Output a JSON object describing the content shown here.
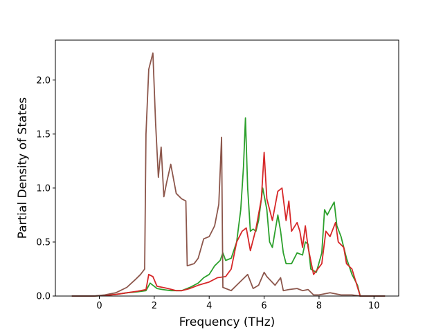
{
  "chart_data": {
    "type": "line",
    "title": "",
    "xlabel": "Frequency (THz)",
    "ylabel": "Partial Density of States",
    "xlim": [
      -1.6,
      10.9
    ],
    "ylim": [
      0,
      2.37
    ],
    "xticks": [
      0,
      2,
      4,
      6,
      8,
      10
    ],
    "yticks": [
      0.0,
      0.5,
      1.0,
      1.5,
      2.0
    ],
    "xtick_labels": [
      "0",
      "2",
      "4",
      "6",
      "8",
      "10"
    ],
    "ytick_labels": [
      "0.0",
      "0.5",
      "1.0",
      "1.5",
      "2.0"
    ],
    "grid": false,
    "legend": "none",
    "series": [
      {
        "color": "#2ca02c",
        "points": [
          [
            -1.0,
            0
          ],
          [
            -0.2,
            0
          ],
          [
            0.2,
            0.005
          ],
          [
            0.6,
            0.015
          ],
          [
            1.0,
            0.03
          ],
          [
            1.4,
            0.04
          ],
          [
            1.7,
            0.05
          ],
          [
            1.85,
            0.12
          ],
          [
            1.95,
            0.1
          ],
          [
            2.1,
            0.07
          ],
          [
            2.3,
            0.06
          ],
          [
            2.6,
            0.05
          ],
          [
            3.0,
            0.05
          ],
          [
            3.3,
            0.08
          ],
          [
            3.6,
            0.12
          ],
          [
            3.8,
            0.17
          ],
          [
            4.0,
            0.2
          ],
          [
            4.2,
            0.28
          ],
          [
            4.4,
            0.33
          ],
          [
            4.5,
            0.4
          ],
          [
            4.6,
            0.33
          ],
          [
            4.8,
            0.35
          ],
          [
            5.0,
            0.5
          ],
          [
            5.15,
            0.8
          ],
          [
            5.25,
            1.2
          ],
          [
            5.32,
            1.65
          ],
          [
            5.4,
            1.0
          ],
          [
            5.5,
            0.6
          ],
          [
            5.6,
            0.62
          ],
          [
            5.7,
            0.6
          ],
          [
            5.8,
            0.7
          ],
          [
            5.95,
            1.0
          ],
          [
            6.1,
            0.8
          ],
          [
            6.2,
            0.5
          ],
          [
            6.3,
            0.45
          ],
          [
            6.4,
            0.6
          ],
          [
            6.5,
            0.75
          ],
          [
            6.6,
            0.6
          ],
          [
            6.7,
            0.4
          ],
          [
            6.8,
            0.3
          ],
          [
            7.0,
            0.3
          ],
          [
            7.2,
            0.4
          ],
          [
            7.4,
            0.38
          ],
          [
            7.5,
            0.5
          ],
          [
            7.6,
            0.48
          ],
          [
            7.7,
            0.25
          ],
          [
            7.9,
            0.22
          ],
          [
            8.1,
            0.4
          ],
          [
            8.2,
            0.8
          ],
          [
            8.3,
            0.75
          ],
          [
            8.4,
            0.8
          ],
          [
            8.55,
            0.87
          ],
          [
            8.65,
            0.65
          ],
          [
            8.8,
            0.55
          ],
          [
            9.0,
            0.35
          ],
          [
            9.2,
            0.2
          ],
          [
            9.4,
            0.1
          ],
          [
            9.5,
            0.0
          ],
          [
            10.4,
            0.0
          ]
        ]
      },
      {
        "color": "#d62728",
        "points": [
          [
            -1.0,
            0
          ],
          [
            -0.2,
            0
          ],
          [
            0.2,
            0.005
          ],
          [
            0.6,
            0.015
          ],
          [
            1.0,
            0.03
          ],
          [
            1.4,
            0.045
          ],
          [
            1.7,
            0.06
          ],
          [
            1.8,
            0.2
          ],
          [
            1.95,
            0.18
          ],
          [
            2.1,
            0.09
          ],
          [
            2.3,
            0.08
          ],
          [
            2.5,
            0.07
          ],
          [
            2.8,
            0.05
          ],
          [
            3.0,
            0.05
          ],
          [
            3.3,
            0.07
          ],
          [
            3.6,
            0.1
          ],
          [
            4.0,
            0.13
          ],
          [
            4.3,
            0.17
          ],
          [
            4.6,
            0.18
          ],
          [
            4.8,
            0.25
          ],
          [
            5.0,
            0.5
          ],
          [
            5.2,
            0.6
          ],
          [
            5.35,
            0.63
          ],
          [
            5.5,
            0.42
          ],
          [
            5.7,
            0.62
          ],
          [
            5.9,
            0.9
          ],
          [
            6.0,
            1.33
          ],
          [
            6.1,
            0.9
          ],
          [
            6.3,
            0.7
          ],
          [
            6.5,
            0.97
          ],
          [
            6.65,
            1.0
          ],
          [
            6.8,
            0.7
          ],
          [
            6.9,
            0.88
          ],
          [
            7.0,
            0.6
          ],
          [
            7.2,
            0.68
          ],
          [
            7.3,
            0.6
          ],
          [
            7.4,
            0.45
          ],
          [
            7.5,
            0.65
          ],
          [
            7.6,
            0.45
          ],
          [
            7.8,
            0.2
          ],
          [
            8.1,
            0.3
          ],
          [
            8.25,
            0.6
          ],
          [
            8.4,
            0.55
          ],
          [
            8.6,
            0.68
          ],
          [
            8.7,
            0.5
          ],
          [
            8.9,
            0.45
          ],
          [
            9.0,
            0.3
          ],
          [
            9.2,
            0.25
          ],
          [
            9.5,
            0.0
          ],
          [
            10.4,
            0.0
          ]
        ]
      },
      {
        "color": "#8c564b",
        "points": [
          [
            -1.0,
            0
          ],
          [
            -0.2,
            0
          ],
          [
            0.2,
            0.01
          ],
          [
            0.6,
            0.03
          ],
          [
            1.0,
            0.08
          ],
          [
            1.3,
            0.15
          ],
          [
            1.5,
            0.2
          ],
          [
            1.65,
            0.25
          ],
          [
            1.7,
            1.5
          ],
          [
            1.8,
            2.1
          ],
          [
            1.95,
            2.25
          ],
          [
            2.05,
            1.6
          ],
          [
            2.15,
            1.1
          ],
          [
            2.25,
            1.38
          ],
          [
            2.35,
            0.92
          ],
          [
            2.45,
            1.05
          ],
          [
            2.6,
            1.22
          ],
          [
            2.8,
            0.95
          ],
          [
            3.0,
            0.9
          ],
          [
            3.15,
            0.88
          ],
          [
            3.2,
            0.28
          ],
          [
            3.45,
            0.3
          ],
          [
            3.6,
            0.35
          ],
          [
            3.8,
            0.53
          ],
          [
            4.0,
            0.55
          ],
          [
            4.2,
            0.65
          ],
          [
            4.35,
            0.85
          ],
          [
            4.45,
            1.47
          ],
          [
            4.5,
            0.08
          ],
          [
            4.8,
            0.05
          ],
          [
            5.0,
            0.1
          ],
          [
            5.2,
            0.15
          ],
          [
            5.4,
            0.2
          ],
          [
            5.6,
            0.07
          ],
          [
            5.8,
            0.1
          ],
          [
            6.0,
            0.22
          ],
          [
            6.1,
            0.18
          ],
          [
            6.4,
            0.1
          ],
          [
            6.6,
            0.17
          ],
          [
            6.7,
            0.05
          ],
          [
            6.9,
            0.06
          ],
          [
            7.2,
            0.07
          ],
          [
            7.4,
            0.05
          ],
          [
            7.6,
            0.06
          ],
          [
            7.8,
            0.01
          ],
          [
            8.0,
            0.01
          ],
          [
            8.4,
            0.03
          ],
          [
            8.8,
            0.01
          ],
          [
            9.2,
            0.01
          ],
          [
            9.5,
            0.0
          ],
          [
            10.4,
            0.0
          ]
        ]
      }
    ]
  }
}
